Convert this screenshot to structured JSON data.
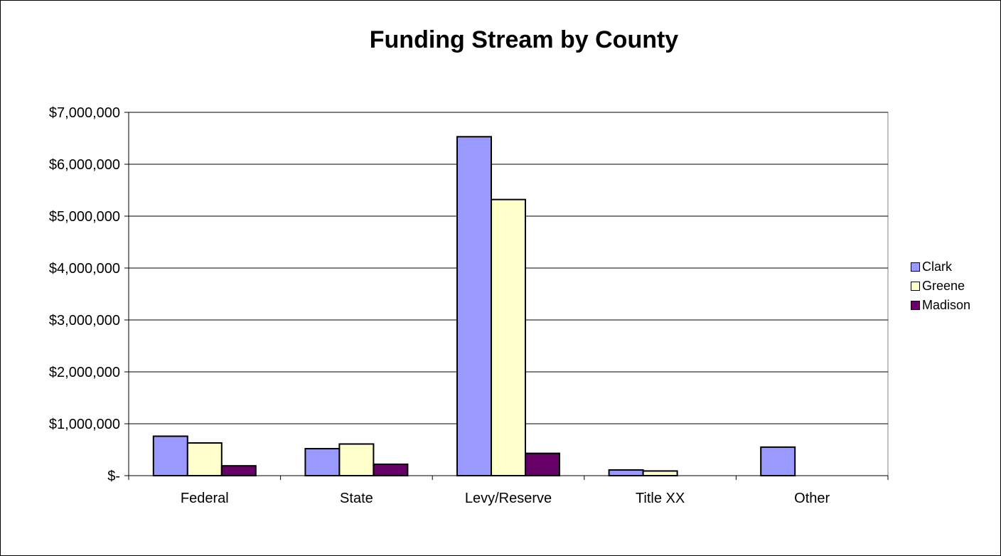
{
  "chart_data": {
    "type": "bar",
    "title": "Funding Stream by County",
    "xlabel": "",
    "ylabel": "",
    "categories": [
      "Federal",
      "State",
      "Levy/Reserve",
      "Title XX",
      "Other"
    ],
    "series": [
      {
        "name": "Clark",
        "color": "#9999ff",
        "values": [
          760000,
          520000,
          6530000,
          110000,
          550000
        ]
      },
      {
        "name": "Greene",
        "color": "#ffffcc",
        "values": [
          630000,
          610000,
          5320000,
          90000,
          0
        ]
      },
      {
        "name": "Madison",
        "color": "#660066",
        "values": [
          190000,
          220000,
          430000,
          0,
          0
        ]
      }
    ],
    "ylim": [
      0,
      7000000
    ],
    "yticks": [
      0,
      1000000,
      2000000,
      3000000,
      4000000,
      5000000,
      6000000,
      7000000
    ],
    "ytick_labels": [
      "$-",
      "$1,000,000",
      "$2,000,000",
      "$3,000,000",
      "$4,000,000",
      "$5,000,000",
      "$6,000,000",
      "$7,000,000"
    ],
    "grid": true,
    "legend_position": "right"
  }
}
